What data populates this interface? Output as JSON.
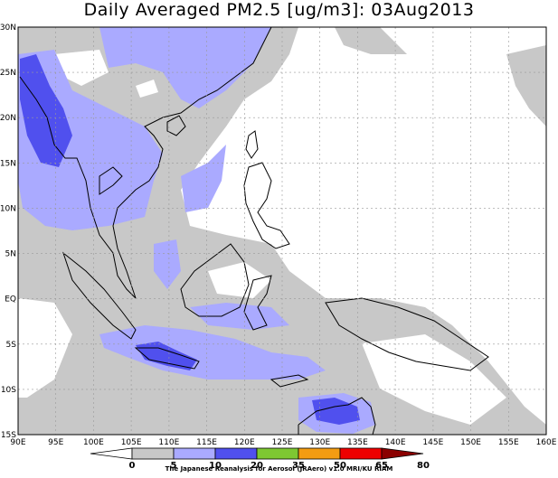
{
  "title": "Daily Averaged PM2.5 [ug/m3]: 03Aug2013",
  "credit": "The Japanese Reanalysis for Aerosol (JRAero) v1.0 MRI/KU RIAM",
  "map": {
    "lon_range": [
      90,
      160
    ],
    "lat_range": [
      -15,
      30
    ],
    "x_tick_labels": [
      "90E",
      "95E",
      "100E",
      "105E",
      "110E",
      "115E",
      "120E",
      "125E",
      "130E",
      "135E",
      "140E",
      "145E",
      "150E",
      "155E",
      "160E"
    ],
    "y_tick_labels": [
      "15S",
      "10S",
      "5S",
      "EQ",
      "5N",
      "10N",
      "15N",
      "20N",
      "25N",
      "30N"
    ],
    "gridlines": "dotted"
  },
  "legend": {
    "labels": [
      "0",
      "5",
      "10",
      "20",
      "35",
      "50",
      "65",
      "80"
    ],
    "colors": [
      "#ffffff",
      "#c8c8c8",
      "#aaaaff",
      "#5050ee",
      "#7ec832",
      "#f39c12",
      "#ee0000",
      "#8b0000"
    ]
  }
}
